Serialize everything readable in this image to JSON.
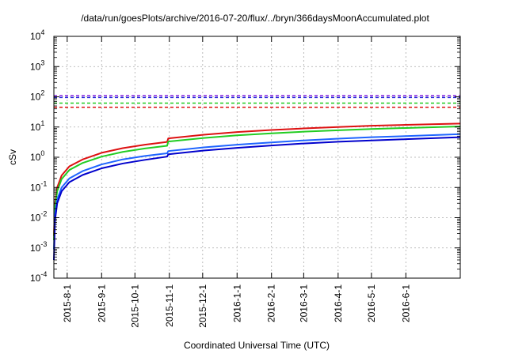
{
  "chart_data": {
    "type": "line",
    "title": "/data/run/goesPlots/archive/2016-07-20/flux/../bryn/366daysMoonAccumulated.plot",
    "xlabel": "Coordinated Universal Time (UTC)",
    "ylabel": "cSv",
    "y_scale": "log",
    "ylim": [
      0.0001,
      10000
    ],
    "xlim": [
      "2015-07-20",
      "2016-07-20"
    ],
    "grid": true,
    "legend": "none",
    "y_ticks": [
      {
        "base": "10",
        "exp": "-4",
        "value": 0.0001
      },
      {
        "base": "10",
        "exp": "-3",
        "value": 0.001
      },
      {
        "base": "10",
        "exp": "-2",
        "value": 0.01
      },
      {
        "base": "10",
        "exp": "-1",
        "value": 0.1
      },
      {
        "base": "10",
        "exp": "0",
        "value": 1
      },
      {
        "base": "10",
        "exp": "1",
        "value": 10
      },
      {
        "base": "10",
        "exp": "2",
        "value": 100
      },
      {
        "base": "10",
        "exp": "3",
        "value": 1000
      },
      {
        "base": "10",
        "exp": "4",
        "value": 10000
      }
    ],
    "x_ticks": [
      {
        "label": "2015-8-1",
        "date": "2015-08-01"
      },
      {
        "label": "2015-9-1",
        "date": "2015-09-01"
      },
      {
        "label": "2015-10-1",
        "date": "2015-10-01"
      },
      {
        "label": "2015-11-1",
        "date": "2015-11-01"
      },
      {
        "label": "2015-12-1",
        "date": "2015-12-01"
      },
      {
        "label": "2016-1-1",
        "date": "2016-01-01"
      },
      {
        "label": "2016-2-1",
        "date": "2016-02-01"
      },
      {
        "label": "2016-3-1",
        "date": "2016-03-01"
      },
      {
        "label": "2016-4-1",
        "date": "2016-04-01"
      },
      {
        "label": "2016-5-1",
        "date": "2016-05-01"
      },
      {
        "label": "2016-6-1",
        "date": "2016-06-01"
      }
    ],
    "limits": [
      {
        "value": 110,
        "color": "#8a2be2"
      },
      {
        "value": 95,
        "color": "#2222dd"
      },
      {
        "value": 62,
        "color": "#22cc22"
      },
      {
        "value": 45,
        "color": "#dd1111"
      }
    ],
    "series": [
      {
        "color": "#dd1111",
        "x": [
          "2015-07-20",
          "2015-07-21",
          "2015-07-23",
          "2015-07-27",
          "2015-08-03",
          "2015-08-15",
          "2015-09-01",
          "2015-09-20",
          "2015-10-10",
          "2015-10-30",
          "2015-10-31",
          "2015-12-01",
          "2016-01-01",
          "2016-02-01",
          "2016-03-01",
          "2016-04-01",
          "2016-05-01",
          "2016-06-01",
          "2016-07-20"
        ],
        "values": [
          0.0025,
          0.03,
          0.1,
          0.25,
          0.5,
          0.85,
          1.4,
          2.0,
          2.6,
          3.2,
          4.2,
          5.5,
          6.8,
          8.0,
          9.0,
          10.0,
          11.0,
          11.8,
          13.0
        ]
      },
      {
        "color": "#22cc22",
        "x": [
          "2015-07-20",
          "2015-07-21",
          "2015-07-23",
          "2015-07-27",
          "2015-08-03",
          "2015-08-15",
          "2015-09-01",
          "2015-09-20",
          "2015-10-10",
          "2015-10-30",
          "2015-10-31",
          "2015-12-01",
          "2016-01-01",
          "2016-02-01",
          "2016-03-01",
          "2016-04-01",
          "2016-05-01",
          "2016-06-01",
          "2016-07-20"
        ],
        "values": [
          0.0018,
          0.022,
          0.075,
          0.19,
          0.38,
          0.65,
          1.05,
          1.5,
          1.95,
          2.4,
          3.3,
          4.3,
          5.3,
          6.2,
          7.0,
          7.8,
          8.6,
          9.3,
          10.5
        ]
      },
      {
        "color": "#1e64ff",
        "x": [
          "2015-07-20",
          "2015-07-21",
          "2015-07-23",
          "2015-07-27",
          "2015-08-03",
          "2015-08-15",
          "2015-09-01",
          "2015-09-20",
          "2015-10-10",
          "2015-10-30",
          "2015-10-31",
          "2015-12-01",
          "2016-01-01",
          "2016-02-01",
          "2016-03-01",
          "2016-04-01",
          "2016-05-01",
          "2016-06-01",
          "2016-07-20"
        ],
        "values": [
          0.0009,
          0.012,
          0.04,
          0.1,
          0.2,
          0.35,
          0.58,
          0.85,
          1.1,
          1.35,
          1.6,
          2.1,
          2.6,
          3.1,
          3.6,
          4.1,
          4.6,
          5.0,
          5.8
        ]
      },
      {
        "color": "#0000cc",
        "x": [
          "2015-07-20",
          "2015-07-21",
          "2015-07-23",
          "2015-07-27",
          "2015-08-03",
          "2015-08-15",
          "2015-09-01",
          "2015-09-20",
          "2015-10-10",
          "2015-10-30",
          "2015-10-31",
          "2015-12-01",
          "2016-01-01",
          "2016-02-01",
          "2016-03-01",
          "2016-04-01",
          "2016-05-01",
          "2016-06-01",
          "2016-07-20"
        ],
        "values": [
          0.0004,
          0.008,
          0.03,
          0.075,
          0.15,
          0.26,
          0.43,
          0.62,
          0.82,
          1.05,
          1.25,
          1.65,
          2.05,
          2.45,
          2.85,
          3.25,
          3.6,
          3.95,
          4.6
        ]
      }
    ]
  }
}
